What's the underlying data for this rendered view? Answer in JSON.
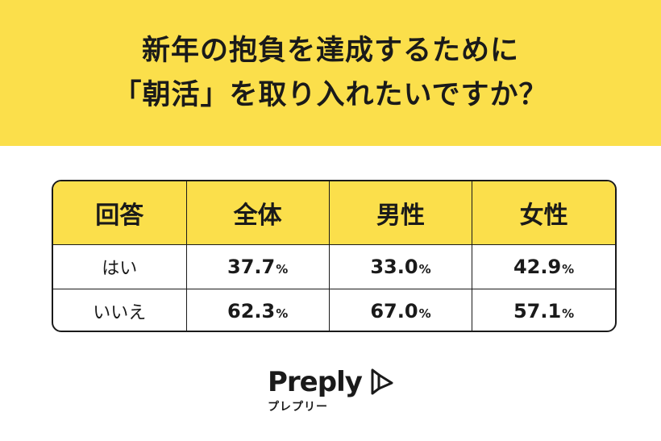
{
  "title": {
    "line1": "新年の抱負を達成するために",
    "line2": "「朝活」を取り入れたいですか？"
  },
  "colors": {
    "accent": "#fbdf4b",
    "text": "#1a1a1a",
    "background": "#ffffff"
  },
  "chart_data": {
    "type": "table",
    "columns": [
      "回答",
      "全体",
      "男性",
      "女性"
    ],
    "rows": [
      {
        "label": "はい",
        "values": [
          "37.7",
          "33.0",
          "42.9"
        ]
      },
      {
        "label": "いいえ",
        "values": [
          "62.3",
          "67.0",
          "57.1"
        ]
      }
    ],
    "unit": "%"
  },
  "brand": {
    "name": "Preply",
    "kana": "プレプリー",
    "icon": "preply-logo-icon"
  }
}
